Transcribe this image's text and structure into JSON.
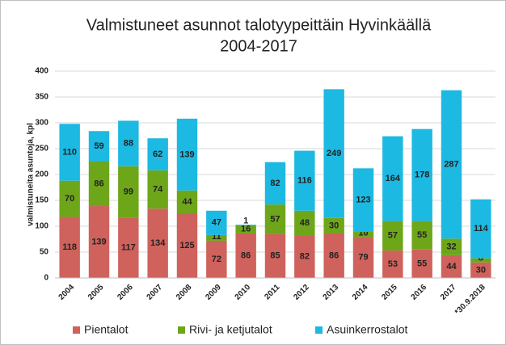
{
  "chart_data": {
    "type": "stacked_bar",
    "title": [
      "Valmistuneet asunnot talotyypeittäin  Hyvinkäällä",
      "2004-2017"
    ],
    "y_label": "valmistuneita asuntoja, kpl",
    "categories": [
      "2004",
      "2005",
      "2006",
      "2007",
      "2008",
      "2009",
      "2010",
      "2011",
      "2012",
      "2013",
      "2014",
      "2015",
      "2016",
      "2017",
      "*30.9.2018"
    ],
    "series": [
      {
        "name": "Pientalot",
        "color": "#cf625c",
        "values": [
          118,
          139,
          117,
          134,
          125,
          72,
          86,
          85,
          82,
          86,
          79,
          53,
          55,
          44,
          30
        ]
      },
      {
        "name": "Rivi- ja ketjutalot",
        "color": "#6ea61a",
        "values": [
          70,
          86,
          99,
          74,
          44,
          11,
          16,
          57,
          48,
          30,
          10,
          57,
          55,
          32,
          8
        ]
      },
      {
        "name": "Asuinkerrostalot",
        "color": "#1cb9e2",
        "values": [
          110,
          59,
          88,
          62,
          139,
          47,
          1,
          82,
          116,
          249,
          123,
          164,
          178,
          287,
          114
        ]
      }
    ],
    "ylim": [
      0,
      400
    ],
    "yticks": [
      0,
      50,
      100,
      150,
      200,
      250,
      300,
      350,
      400
    ],
    "grid": true,
    "legend": "bottom"
  }
}
